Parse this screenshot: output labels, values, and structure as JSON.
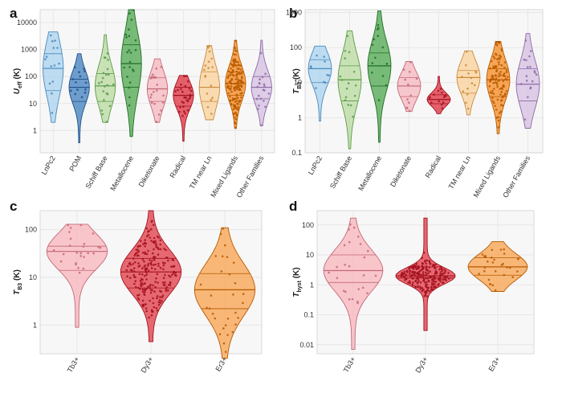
{
  "figure": {
    "panels": [
      "a",
      "b",
      "c",
      "d"
    ]
  },
  "chart_data": [
    {
      "panel": "a",
      "type": "violin",
      "ylabel": "U_eff (K)",
      "yscale": "log",
      "ylim": [
        0.15,
        30000
      ],
      "yticks": [
        "1",
        "10",
        "100",
        "1000",
        "10000"
      ],
      "ytick_values": [
        1,
        10,
        100,
        1000,
        10000
      ],
      "categories": [
        "LnPc2",
        "POM",
        "Schiff Base",
        "Metallocene",
        "Diketonate",
        "Radical",
        "TM near Ln",
        "Mixed Ligands",
        "Other Families"
      ],
      "colors": [
        "#a9d3ef",
        "#3f7fbf",
        "#b8dba0",
        "#4da64d",
        "#f6b7be",
        "#de2d3c",
        "#fbd19a",
        "#f58a1f",
        "#d6bfe1"
      ],
      "edge_colors": [
        "#4a89bd",
        "#1f4f87",
        "#5b9a45",
        "#1f6e25",
        "#c46877",
        "#a3111f",
        "#c98a3b",
        "#b85a00",
        "#8c6aa5"
      ],
      "min": [
        2,
        0.35,
        2,
        0.6,
        2,
        0.4,
        2.5,
        1.2,
        1.5
      ],
      "max": [
        4500,
        700,
        3500,
        30000,
        450,
        110,
        1400,
        2200,
        2200
      ],
      "q1": [
        30,
        12,
        12,
        40,
        12,
        8,
        12,
        20,
        15
      ],
      "median": [
        200,
        40,
        45,
        300,
        35,
        20,
        40,
        55,
        40
      ],
      "q3": [
        700,
        80,
        130,
        1500,
        90,
        40,
        150,
        150,
        100
      ],
      "counts": [
        14,
        14,
        22,
        22,
        20,
        30,
        18,
        150,
        20
      ]
    },
    {
      "panel": "b",
      "type": "violin",
      "ylabel": "T_B3 (K)",
      "yscale": "log",
      "ylim": [
        0.1,
        1200
      ],
      "yticks": [
        "0.1",
        "1",
        "10",
        "100",
        "1000"
      ],
      "ytick_values": [
        0.1,
        1,
        10,
        100,
        1000
      ],
      "categories": [
        "LnPc2",
        "Schiff Base",
        "Metallocene",
        "Diketonate",
        "Radical",
        "TM near Ln",
        "Mixed Ligands",
        "Other Families"
      ],
      "colors": [
        "#a9d3ef",
        "#b8dba0",
        "#4da64d",
        "#f6b7be",
        "#de2d3c",
        "#fbd19a",
        "#f58a1f",
        "#d6bfe1"
      ],
      "edge_colors": [
        "#4a89bd",
        "#5b9a45",
        "#1f6e25",
        "#c46877",
        "#a3111f",
        "#c98a3b",
        "#b85a00",
        "#8c6aa5"
      ],
      "min": [
        0.8,
        0.13,
        0.2,
        1.5,
        1.3,
        1.2,
        0.35,
        0.5
      ],
      "max": [
        110,
        300,
        1100,
        40,
        15,
        80,
        150,
        250
      ],
      "q1": [
        10,
        3,
        8,
        4,
        2.5,
        5,
        4,
        3
      ],
      "median": [
        25,
        12,
        30,
        8,
        3.3,
        14,
        12,
        9
      ],
      "q3": [
        45,
        30,
        70,
        14,
        4.5,
        22,
        25,
        25
      ],
      "counts": [
        10,
        16,
        14,
        12,
        14,
        14,
        110,
        18
      ]
    },
    {
      "panel": "c",
      "type": "violin",
      "ylabel": "T_B3 (K)",
      "yscale": "log",
      "ylim": [
        0.25,
        250
      ],
      "yticks": [
        "1",
        "10",
        "100"
      ],
      "ytick_values": [
        1,
        10,
        100
      ],
      "categories": [
        "Tb3+",
        "Dy3+",
        "Er3+"
      ],
      "colors": [
        "#f8b4bb",
        "#e03a44",
        "#f8a24c"
      ],
      "edge_colors": [
        "#c46877",
        "#a3111f",
        "#b85a00"
      ],
      "min": [
        0.9,
        0.45,
        0.2
      ],
      "max": [
        130,
        250,
        110
      ],
      "q1": [
        14,
        6,
        2.2
      ],
      "median": [
        35,
        13,
        5.5
      ],
      "q3": [
        45,
        25,
        12
      ],
      "counts": [
        25,
        220,
        30
      ]
    },
    {
      "panel": "d",
      "type": "violin",
      "ylabel": "T_hyst (K)",
      "yscale": "log",
      "ylim": [
        0.005,
        300
      ],
      "yticks": [
        "0.01",
        "0.1",
        "1",
        "10",
        "100"
      ],
      "ytick_values": [
        0.01,
        0.1,
        1,
        10,
        100
      ],
      "categories": [
        "Tb3+",
        "Dy3+",
        "Er3+"
      ],
      "colors": [
        "#f8b4bb",
        "#e03a44",
        "#f8a24c"
      ],
      "edge_colors": [
        "#c46877",
        "#a3111f",
        "#b85a00"
      ],
      "min": [
        0.007,
        0.03,
        0.6
      ],
      "max": [
        170,
        170,
        28
      ],
      "q1": [
        1.2,
        1.7,
        2.1
      ],
      "median": [
        3,
        2,
        4
      ],
      "q3": [
        10,
        4,
        8
      ],
      "counts": [
        25,
        220,
        30
      ]
    }
  ]
}
